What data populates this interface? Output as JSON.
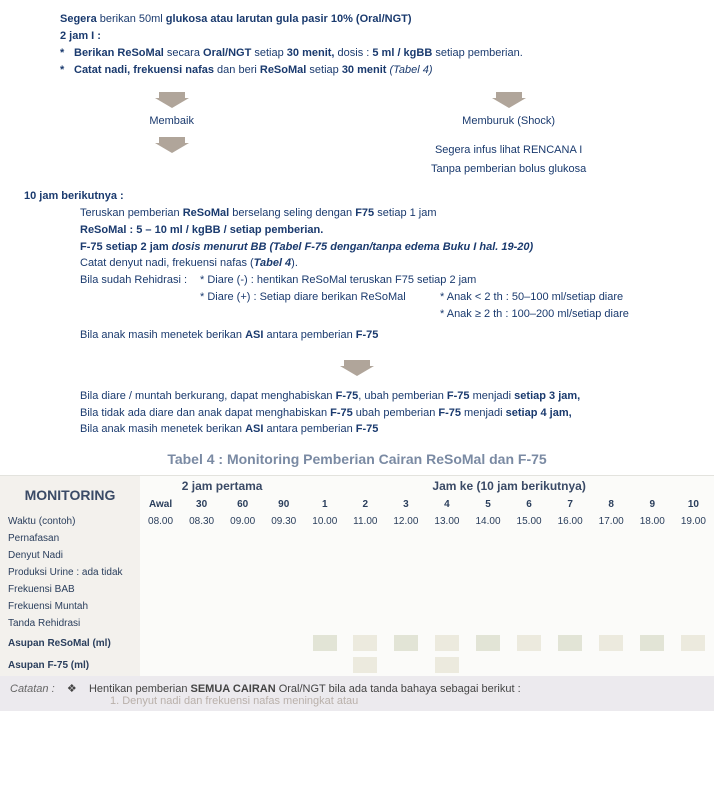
{
  "intro": {
    "l1_pre": "Segera",
    "l1_mid": " berikan 50ml ",
    "l1_bold2": "glukosa atau larutan gula pasir 10% (Oral/NGT)",
    "l2": "2 jam I :",
    "b1_a": "Berikan ReSoMal",
    "b1_b": " secara ",
    "b1_c": "Oral/NGT",
    "b1_d": " setiap ",
    "b1_e": "30 menit,",
    "b1_f": " dosis : ",
    "b1_g": "5 ml / kgBB",
    "b1_h": " setiap pemberian.",
    "b2_a": "Catat nadi, frekuensi nafas",
    "b2_b": "  dan beri ",
    "b2_c": "ReSoMal",
    "b2_d": "  setiap  ",
    "b2_e": "30 menit ",
    "b2_f": "(Tabel 4)"
  },
  "arrows": {
    "membaik": "Membaik",
    "memburuk": "Memburuk (Shock)",
    "rencanaA": "Segera infus lihat RENCANA I",
    "rencanaB": "Tanpa pemberian bolus glukosa"
  },
  "ten": {
    "head": "10 jam berikutnya :",
    "l1a": "Teruskan pemberian ",
    "l1b": "ReSoMal",
    "l1c": " berselang seling dengan ",
    "l1d": "F75",
    "l1e": " setiap 1 jam",
    "l2": "ReSoMal : 5 – 10 ml / kgBB / setiap pemberian.",
    "l3a": "F-75 setiap 2 jam ",
    "l3b": "dosis menurut BB (Tabel F-75 dengan/tanpa edema Buku I hal. 19-20)",
    "l4a": "Catat denyut nadi, frekuensi nafas (",
    "l4b": "Tabel 4",
    "l4c": ").",
    "l5": "Bila sudah Rehidrasi :",
    "d1": "*  Diare (-)  : hentikan ReSoMal teruskan F75 setiap 2 jam",
    "d2": "*  Diare (+) :  Setiap diare berikan  ReSoMal",
    "n1": "*  Anak < 2 th : 50–100 ml/setiap diare",
    "n2": "*  Anak ≥ 2 th : 100–200 ml/setiap diare",
    "asi_a": "Bila anak masih menetek berikan ",
    "asi_b": "ASI",
    "asi_c": " antara pemberian ",
    "asi_d": "F-75"
  },
  "after": {
    "l1a": "Bila diare / muntah berkurang, dapat menghabiskan  ",
    "l1b": "F-75",
    "l1c": ", ubah pemberian ",
    "l1d": "F-75",
    "l1e": " menjadi ",
    "l1f": "setiap 3 jam,",
    "l2a": "Bila tidak ada diare dan anak dapat menghabiskan  ",
    "l2b": "F-75",
    "l2c": " ubah pemberian ",
    "l2d": "F-75",
    "l2e": " menjadi ",
    "l2f": "setiap 4 jam,",
    "l3a": "Bila anak masih menetek berikan ",
    "l3b": "ASI",
    "l3c": " antara pemberian ",
    "l3d": "F-75"
  },
  "table": {
    "title": "Tabel 4 : Monitoring Pemberian Cairan ReSoMal dan F-75",
    "monitoring": "MONITORING",
    "grp1": "2 jam pertama",
    "grp2": "Jam ke (10 jam berikutnya)",
    "sub": [
      "Awal",
      "30",
      "60",
      "90",
      "1",
      "2",
      "3",
      "4",
      "5",
      "6",
      "7",
      "8",
      "9",
      "10"
    ],
    "rows": [
      "Waktu (contoh)",
      "Pernafasan",
      "Denyut Nadi",
      "Produksi Urine : ada   tidak",
      "Frekuensi BAB",
      "Frekuensi Muntah",
      "Tanda Rehidrasi",
      "Asupan ReSoMal (ml)",
      "Asupan F-75 (ml)"
    ],
    "times": [
      "08.00",
      "08.30",
      "09.00",
      "09.30",
      "10.00",
      "11.00",
      "12.00",
      "13.00",
      "14.00",
      "15.00",
      "16.00",
      "17.00",
      "18.00",
      "19.00"
    ]
  },
  "catatan": {
    "label": "Catatan :",
    "diamond": "❖",
    "text_a": "Hentikan pemberian ",
    "text_b": "SEMUA CAIRAN",
    "text_c": "  Oral/NGT bila ada tanda bahaya sebagai berikut :",
    "cut": "1.   Denyut nadi dan frekuensi nafas meningkat  atau"
  }
}
